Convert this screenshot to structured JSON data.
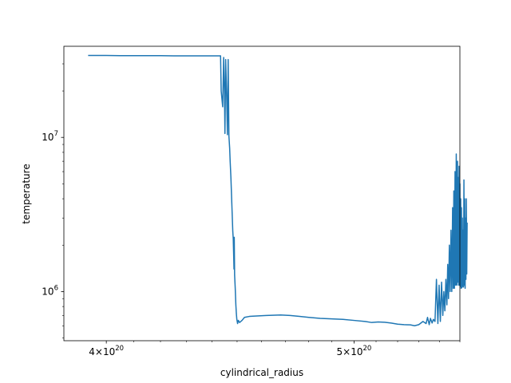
{
  "chart_data": {
    "type": "line",
    "xlabel": "cylindrical_radius",
    "ylabel": "temperature",
    "x_scale": "log",
    "y_scale": "log",
    "xlim": [
      3.85e+20,
      5.5e+20
    ],
    "ylim": [
      480000,
      39000000
    ],
    "grid": false,
    "color": "#1f77b4",
    "x_ticks": [
      {
        "value": 4e+20,
        "base": "4",
        "exp": "20"
      },
      {
        "value": 5e+20,
        "base": "5",
        "exp": "20"
      }
    ],
    "y_ticks": [
      {
        "value": 1000000,
        "base": "10",
        "exp": "6"
      },
      {
        "value": 10000000,
        "base": "10",
        "exp": "7"
      }
    ],
    "series": [
      {
        "x": [
          3.935e+20,
          3.96e+20,
          4e+20,
          4.05e+20,
          4.1e+20,
          4.15e+20,
          4.2e+20,
          4.25e+20,
          4.3e+20,
          4.35e+20,
          4.4e+20,
          4.4335e+20,
          4.436e+20,
          4.442e+20,
          4.446e+20,
          4.449e+20,
          4.451e+20,
          4.454e+20,
          4.458e+20,
          4.461e+20,
          4.464e+20,
          4.467e+20,
          4.47e+20,
          4.472e+20,
          4.475e+20,
          4.4826e+20,
          4.4845e+20,
          4.4855e+20,
          4.4865e+20,
          4.4875e+20,
          4.4885e+20,
          4.49e+20,
          4.4925e+20,
          4.495e+20,
          4.497e+20,
          4.499e+20,
          4.502e+20,
          4.505e+20,
          4.51e+20,
          4.52e+20,
          4.53e+20,
          4.55e+20,
          4.58e+20,
          4.62e+20,
          4.68e+20,
          4.72e+20,
          4.76e+20,
          4.8e+20,
          4.85e+20,
          4.9e+20,
          4.95e+20,
          5e+20,
          5.05e+20,
          5.08e+20,
          5.11e+20,
          5.14e+20,
          5.17e+20,
          5.2e+20,
          5.23e+20,
          5.26e+20,
          5.28e+20,
          5.3e+20,
          5.32e+20,
          5.335e+20,
          5.342e+20,
          5.35e+20,
          5.356e+20,
          5.364e+20,
          5.37e+20,
          5.378e+20,
          5.385e+20,
          5.392e+20,
          5.398e+20,
          5.404e+20,
          5.41e+20,
          5.416e+20,
          5.421e+20,
          5.426e+20,
          5.431e+20,
          5.436e+20,
          5.44e+20,
          5.444e+20,
          5.448e+20,
          5.452e+20,
          5.456e+20,
          5.46e+20,
          5.464e+20,
          5.467e+20,
          5.47e+20,
          5.473e+20,
          5.476e+20,
          5.479e+20,
          5.482e+20,
          5.485e+20,
          5.488e+20,
          5.49e+20,
          5.492e+20,
          5.494e+20,
          5.496e+20,
          5.498e+20,
          5.5e+20,
          5.502e+20,
          5.504e+20,
          5.506e+20,
          5.508e+20,
          5.51e+20,
          5.512e+20,
          5.514e+20,
          5.516e+20,
          5.518e+20,
          5.52e+20,
          5.522e+20,
          5.524e+20,
          5.526e+20,
          5.528e+20,
          5.53e+20,
          5.532e+20,
          5.534e+20,
          5.536e+20
        ],
        "y": [
          34000000,
          34000000,
          34000000,
          33900000,
          33900000,
          33900000,
          33900000,
          33800000,
          33800000,
          33800000,
          33800000,
          33800000,
          20000000,
          15800000,
          33000000,
          20000000,
          10600000,
          32000000,
          18000000,
          10400000,
          32000000,
          10200000,
          8500000,
          7000000,
          5500000,
          2450000,
          2200000,
          1900000,
          1650000,
          1400000,
          2250000,
          1280000,
          1050000,
          820000,
          720000,
          660000,
          620000,
          650000,
          630000,
          650000,
          680000,
          690000,
          695000,
          700000,
          705000,
          700000,
          690000,
          680000,
          670000,
          665000,
          660000,
          650000,
          640000,
          630000,
          635000,
          632000,
          625000,
          615000,
          610000,
          608000,
          600000,
          610000,
          640000,
          620000,
          680000,
          610000,
          670000,
          625000,
          660000,
          640000,
          1200000,
          620000,
          1100000,
          640000,
          1150000,
          700000,
          1000000,
          750000,
          1200000,
          820000,
          1500000,
          900000,
          2000000,
          1000000,
          2500000,
          1000000,
          3500000,
          1050000,
          4500000,
          1050000,
          6000000,
          1100000,
          7800000,
          1100000,
          7000000,
          1150000,
          5500000,
          1100000,
          6500000,
          1100000,
          5000000,
          1080000,
          4000000,
          1050000,
          3500000,
          1060000,
          3000000,
          1080000,
          2500000,
          1070000,
          5300000,
          1100000,
          4000000,
          1050000,
          3000000,
          1200000,
          4000000,
          1300000,
          2800000
        ]
      }
    ]
  }
}
